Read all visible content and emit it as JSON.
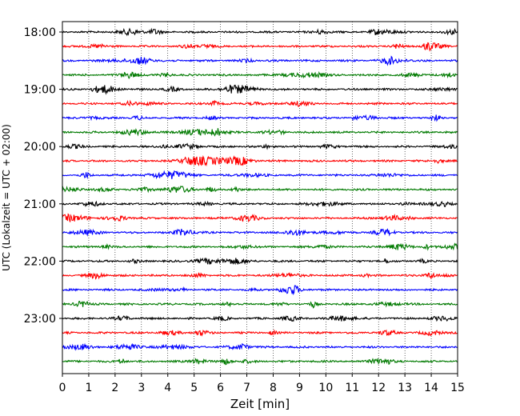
{
  "chart_data": {
    "type": "line",
    "title": "",
    "xlabel": "Zeit  [min]",
    "ylabel": "UTC (Lokalzeit = UTC + 02:00)",
    "xlim": [
      0,
      15
    ],
    "x_ticks": [
      0,
      1,
      2,
      3,
      4,
      5,
      6,
      7,
      8,
      9,
      10,
      11,
      12,
      13,
      14,
      15
    ],
    "x_tick_labels": [
      "0",
      "1",
      "2",
      "3",
      "4",
      "5",
      "6",
      "7",
      "8",
      "9",
      "10",
      "11",
      "12",
      "13",
      "14",
      "15"
    ],
    "y_tick_labels": [
      "18:00",
      "19:00",
      "20:00",
      "21:00",
      "22:00",
      "23:00"
    ],
    "traces_per_hour": 4,
    "trace_start": "18:00",
    "trace_count": 24,
    "trace_colors": [
      "#000000",
      "#ff0000",
      "#0000ff",
      "#007a00"
    ],
    "grid": "vertical dotted lines at each minute",
    "legend": "none"
  }
}
